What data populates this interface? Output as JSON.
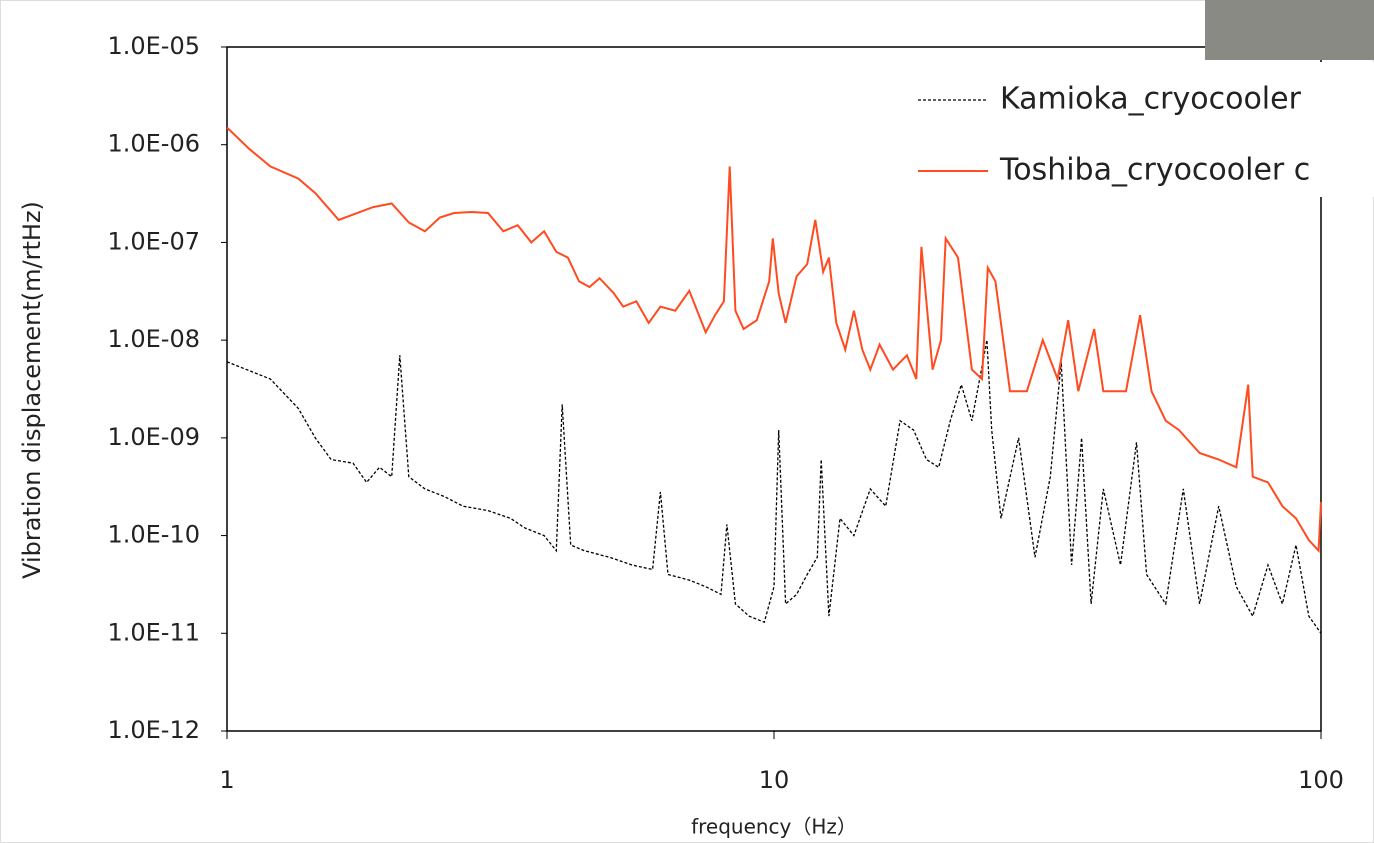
{
  "chart_data": {
    "type": "line",
    "xlabel": "frequency（Hz）",
    "ylabel": "Vibration displacement(m/rtHz)",
    "xscale": "log",
    "yscale": "log",
    "xlim": [
      1,
      100
    ],
    "xticks": [
      1,
      10,
      100
    ],
    "ylim": [
      1e-12,
      1e-05
    ],
    "yticks": [
      {
        "value": 1e-12,
        "label": "1.0E-12"
      },
      {
        "value": 1e-11,
        "label": "1.0E-11"
      },
      {
        "value": 1e-10,
        "label": "1.0E-10"
      },
      {
        "value": 1e-09,
        "label": "1.0E-09"
      },
      {
        "value": 1e-08,
        "label": "1.0E-08"
      },
      {
        "value": 1e-07,
        "label": "1.0E-07"
      },
      {
        "value": 1e-06,
        "label": "1.0E-06"
      },
      {
        "value": 1e-05,
        "label": "1.0E-05"
      }
    ],
    "legend": "upper right",
    "series": [
      {
        "name": "Kamioka_cryocooler",
        "color": "#000000",
        "dash": true,
        "x": [
          1,
          1.2,
          1.35,
          1.45,
          1.55,
          1.7,
          1.8,
          1.9,
          2.0,
          2.07,
          2.15,
          2.3,
          2.5,
          2.7,
          3.0,
          3.3,
          3.5,
          3.8,
          4.0,
          4.1,
          4.25,
          4.5,
          5.0,
          5.5,
          6.0,
          6.2,
          6.4,
          7.0,
          7.5,
          8.0,
          8.2,
          8.5,
          9.0,
          9.6,
          10.0,
          10.2,
          10.5,
          11.0,
          11.5,
          12.0,
          12.2,
          12.6,
          13.2,
          14,
          15,
          16,
          17,
          18,
          19,
          20,
          21,
          22,
          23,
          24.5,
          25,
          26,
          28,
          30,
          32,
          33.5,
          35,
          36.5,
          38,
          40,
          43,
          46,
          48,
          52,
          56,
          60,
          65,
          70,
          75,
          80,
          85,
          90,
          95,
          100
        ],
        "values": [
          6e-09,
          4e-09,
          2e-09,
          1e-09,
          6e-10,
          5.5e-10,
          3.5e-10,
          5e-10,
          4e-10,
          7e-09,
          4e-10,
          3e-10,
          2.5e-10,
          2e-10,
          1.8e-10,
          1.5e-10,
          1.2e-10,
          1e-10,
          7e-11,
          2.2e-09,
          8e-11,
          7e-11,
          6e-11,
          5e-11,
          4.5e-11,
          2.8e-10,
          4e-11,
          3.5e-11,
          3e-11,
          2.5e-11,
          1.3e-10,
          2e-11,
          1.5e-11,
          1.3e-11,
          3e-11,
          1.2e-09,
          2e-11,
          2.5e-11,
          4e-11,
          6e-11,
          6e-10,
          1.5e-11,
          1.5e-10,
          1e-10,
          3e-10,
          2e-10,
          1.5e-09,
          1.2e-09,
          6e-10,
          5e-10,
          1.5e-09,
          3.5e-09,
          1.5e-09,
          1e-08,
          1.2e-09,
          1.5e-10,
          1e-09,
          6e-11,
          4e-10,
          6e-09,
          5e-11,
          1e-09,
          2e-11,
          3e-10,
          5e-11,
          9e-10,
          4e-11,
          2e-11,
          3e-10,
          2e-11,
          2e-10,
          3e-11,
          1.5e-11,
          5e-11,
          2e-11,
          8e-11,
          1.5e-11,
          1e-11
        ]
      },
      {
        "name": "Toshiba_cryocooler c",
        "color": "#ff4b1f",
        "dash": false,
        "x": [
          1,
          1.1,
          1.2,
          1.35,
          1.45,
          1.6,
          1.85,
          2.0,
          2.15,
          2.3,
          2.45,
          2.6,
          2.8,
          3.0,
          3.2,
          3.4,
          3.6,
          3.8,
          4.0,
          4.2,
          4.4,
          4.6,
          4.8,
          5.1,
          5.3,
          5.6,
          5.9,
          6.2,
          6.6,
          7.0,
          7.5,
          7.8,
          8.1,
          8.3,
          8.5,
          8.8,
          9.3,
          9.8,
          9.95,
          10.2,
          10.5,
          11.0,
          11.5,
          11.9,
          12.3,
          12.6,
          13.0,
          13.5,
          14.0,
          14.5,
          15.0,
          15.6,
          16.5,
          17.5,
          18.2,
          18.6,
          19.5,
          20.2,
          20.6,
          21.7,
          23,
          24,
          24.6,
          25.4,
          27,
          29,
          31,
          33,
          34.5,
          36,
          38.5,
          40,
          44,
          46.7,
          49,
          52,
          55,
          60,
          65,
          70,
          73.6,
          75,
          80,
          85,
          90,
          95,
          99,
          100
        ],
        "values": [
          1.5e-06,
          9e-07,
          6e-07,
          4.5e-07,
          3.2e-07,
          1.7e-07,
          2.3e-07,
          2.5e-07,
          1.6e-07,
          1.3e-07,
          1.8e-07,
          2e-07,
          2.05e-07,
          2e-07,
          1.3e-07,
          1.5e-07,
          1e-07,
          1.3e-07,
          8e-08,
          7e-08,
          4e-08,
          3.5e-08,
          4.3e-08,
          3e-08,
          2.2e-08,
          2.5e-08,
          1.5e-08,
          2.2e-08,
          2e-08,
          3.2e-08,
          1.2e-08,
          1.8e-08,
          2.5e-08,
          6e-07,
          2e-08,
          1.3e-08,
          1.6e-08,
          4e-08,
          1.1e-07,
          3e-08,
          1.5e-08,
          4.5e-08,
          6e-08,
          1.7e-07,
          5e-08,
          7e-08,
          1.5e-08,
          8e-09,
          2e-08,
          8e-09,
          5e-09,
          9e-09,
          5e-09,
          7e-09,
          4e-09,
          9e-08,
          5e-09,
          1e-08,
          1.1e-07,
          7e-08,
          5e-09,
          4e-09,
          5.5e-08,
          4e-08,
          3e-09,
          3e-09,
          1e-08,
          4e-09,
          1.6e-08,
          3e-09,
          1.3e-08,
          3e-09,
          3e-09,
          1.8e-08,
          3e-09,
          1.5e-09,
          1.2e-09,
          7e-10,
          6e-10,
          5e-10,
          3.5e-09,
          4e-10,
          3.5e-10,
          2e-10,
          1.5e-10,
          9e-11,
          7e-11,
          2.2e-10
        ]
      }
    ]
  }
}
